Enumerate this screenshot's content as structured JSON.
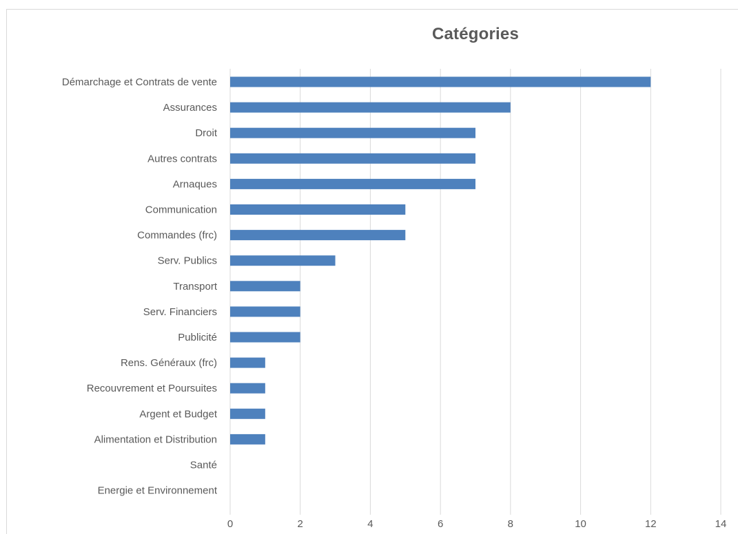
{
  "chart_data": {
    "type": "bar",
    "orientation": "horizontal",
    "title": "Catégories",
    "xlabel": "",
    "ylabel": "",
    "categories": [
      "Démarchage et Contrats de vente",
      "Assurances",
      "Droit",
      "Autres contrats",
      "Arnaques",
      "Communication",
      "Commandes (frc)",
      "Serv. Publics",
      "Transport",
      "Serv. Financiers",
      "Publicité",
      "Rens. Généraux (frc)",
      "Recouvrement et Poursuites",
      "Argent et Budget",
      "Alimentation et Distribution",
      "Santé",
      "Energie et Environnement"
    ],
    "values": [
      12,
      8,
      7,
      7,
      7,
      5,
      5,
      3,
      2,
      2,
      2,
      1,
      1,
      1,
      1,
      0,
      0
    ],
    "xlim": [
      0,
      14
    ],
    "ticks": [
      0,
      2,
      4,
      6,
      8,
      10,
      12,
      14
    ],
    "grid": true,
    "legend": "none",
    "bar_color": "#4e81bd",
    "grid_color": "#d9d9d9"
  }
}
